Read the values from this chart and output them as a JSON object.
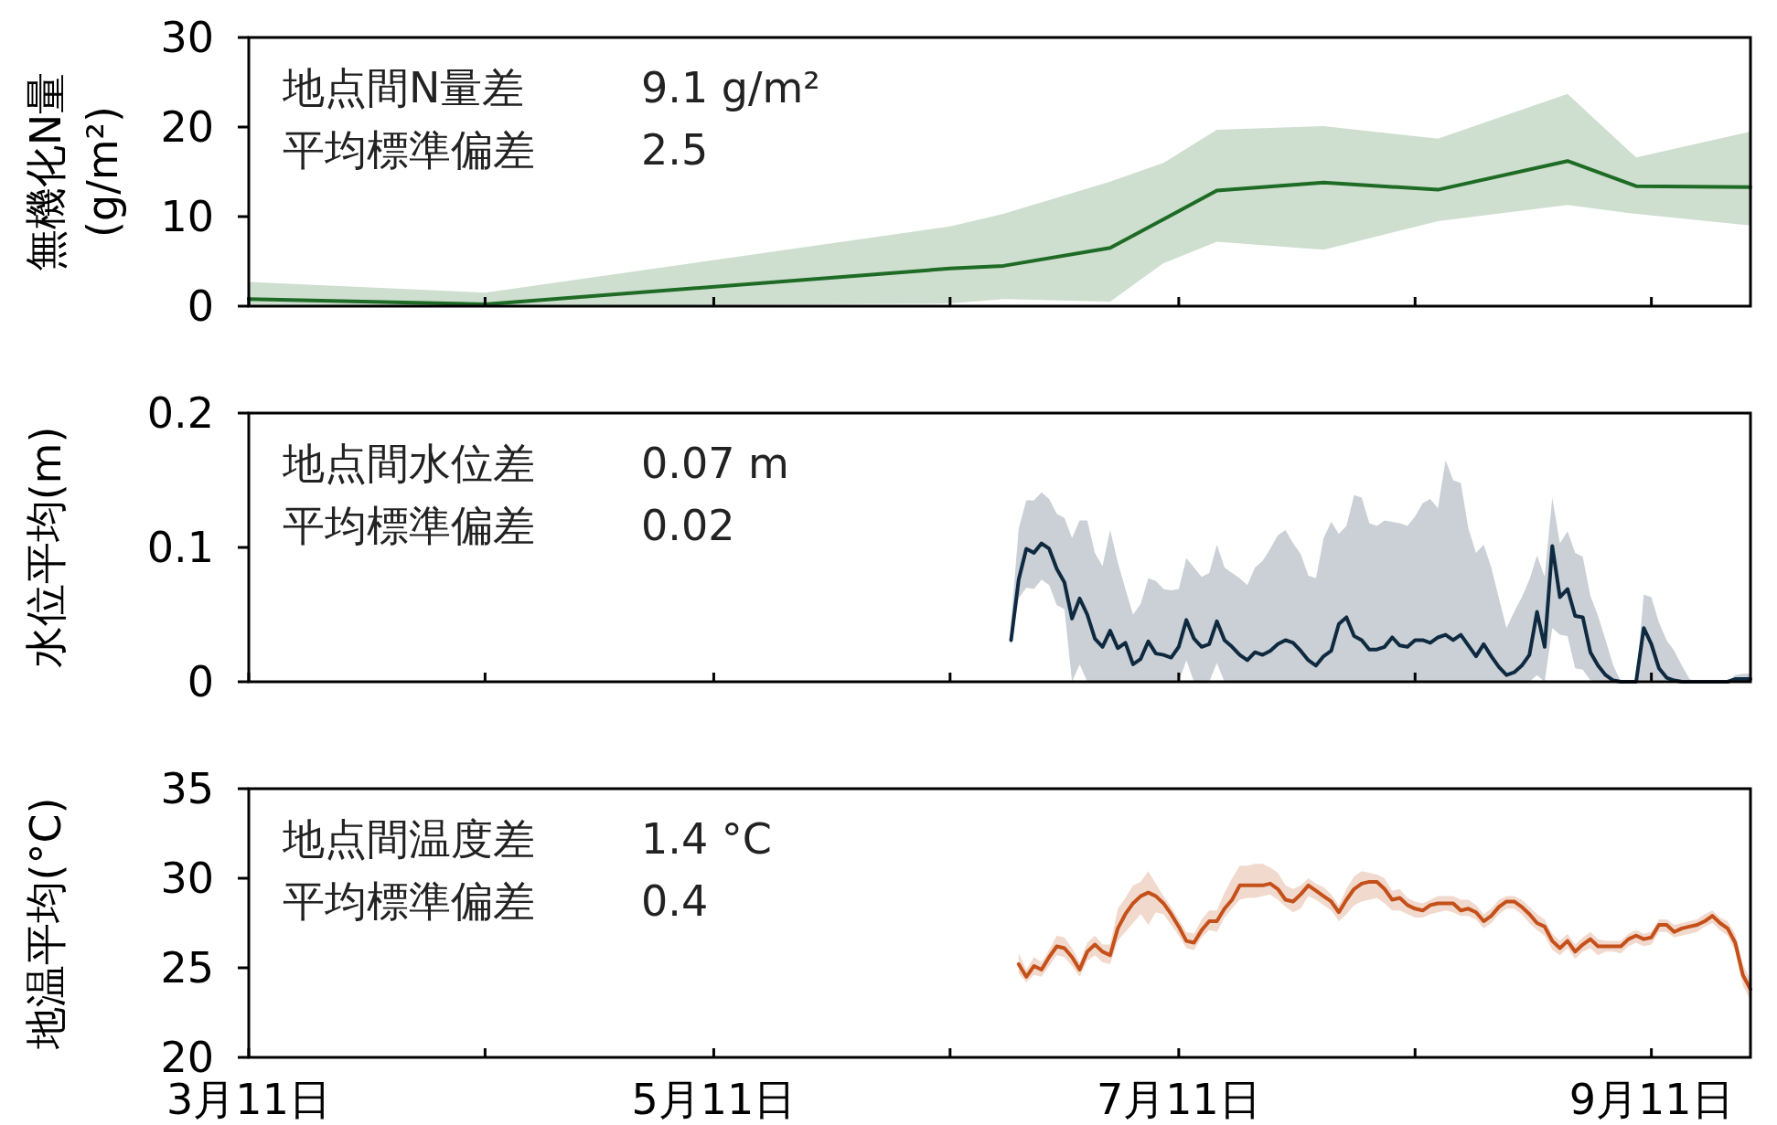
{
  "chart_data": [
    {
      "type": "line",
      "ylabel": "無機化N量 (g/m²)",
      "xlim": [
        "--03-11",
        "--09-24"
      ],
      "ylim": [
        0,
        30
      ],
      "yticks": [
        0,
        10,
        20,
        30
      ],
      "tick_labels": "y",
      "xticks": [
        {
          "value": "--03-11",
          "label": null
        },
        {
          "value": "--04-11",
          "label": null
        },
        {
          "value": "--05-11",
          "label": null
        },
        {
          "value": "--06-11",
          "label": null
        },
        {
          "value": "--07-11",
          "label": null
        },
        {
          "value": "--08-11",
          "label": null
        },
        {
          "value": "--09-11",
          "label": null
        }
      ],
      "annotations": [
        "地点間N量差 9.1 g/m²",
        "平均標準偏差 2.5"
      ],
      "series": [
        {
          "color": "#1e6b25",
          "x": [
            "--03-11",
            "--04-11",
            "--06-11",
            "--06-18",
            "--07-02",
            "--07-09",
            "--07-16",
            "--07-30",
            "--08-14",
            "--08-31",
            "--09-09",
            "--09-24"
          ],
          "values": [
            0.8,
            0.2,
            4.2,
            4.5,
            6.5,
            9.7,
            12.9,
            13.8,
            13.0,
            16.2,
            13.4,
            13.3
          ],
          "upper": [
            2.7,
            1.5,
            8.9,
            10.3,
            13.9,
            16.0,
            19.7,
            20.1,
            18.7,
            23.7,
            16.6,
            19.5
          ],
          "lower": [
            0,
            0,
            0.3,
            0.8,
            0.5,
            4.8,
            7.2,
            6.3,
            9.5,
            11.3,
            10.3,
            9.0
          ]
        }
      ]
    },
    {
      "type": "line",
      "ylabel": "水位平均(m)",
      "xlim": [
        "--03-11",
        "--09-24"
      ],
      "ylim": [
        0,
        0.2
      ],
      "yticks": [
        0,
        0.1,
        0.2
      ],
      "tick_labels": "y",
      "xticks": [
        {
          "value": "--03-11",
          "label": null
        },
        {
          "value": "--04-11",
          "label": null
        },
        {
          "value": "--05-11",
          "label": null
        },
        {
          "value": "--06-11",
          "label": null
        },
        {
          "value": "--07-11",
          "label": null
        },
        {
          "value": "--08-11",
          "label": null
        },
        {
          "value": "--09-11",
          "label": null
        }
      ],
      "annotations": [
        "地点間水位差 0.07 m",
        "平均標準偏差 0.02"
      ],
      "series": [
        {
          "color": "#0f2a40",
          "x": [
            "--06-19",
            "--06-20",
            "--06-21",
            "--06-22",
            "--06-23",
            "--06-24",
            "--06-25",
            "--06-26",
            "--06-27",
            "--06-28",
            "--06-29",
            "--06-30",
            "--07-01",
            "--07-02",
            "--07-03",
            "--07-04",
            "--07-05",
            "--07-06",
            "--07-07",
            "--07-08",
            "--07-09",
            "--07-10",
            "--07-11",
            "--07-12",
            "--07-13",
            "--07-14",
            "--07-15",
            "--07-16",
            "--07-17",
            "--07-18",
            "--07-19",
            "--07-20",
            "--07-21",
            "--07-22",
            "--07-23",
            "--07-24",
            "--07-25",
            "--07-26",
            "--07-27",
            "--07-28",
            "--07-29",
            "--07-30",
            "--07-31",
            "--08-01",
            "--08-02",
            "--08-03",
            "--08-04",
            "--08-05",
            "--08-06",
            "--08-07",
            "--08-08",
            "--08-09",
            "--08-10",
            "--08-11",
            "--08-12",
            "--08-13",
            "--08-14",
            "--08-15",
            "--08-16",
            "--08-17",
            "--08-18",
            "--08-19",
            "--08-20",
            "--08-21",
            "--08-22",
            "--08-23",
            "--08-24",
            "--08-25",
            "--08-26",
            "--08-27",
            "--08-28",
            "--08-29",
            "--08-30",
            "--08-31",
            "--09-01",
            "--09-02",
            "--09-03",
            "--09-04",
            "--09-05",
            "--09-06",
            "--09-07",
            "--09-08",
            "--09-09",
            "--09-10",
            "--09-11",
            "--09-12",
            "--09-13",
            "--09-14",
            "--09-15",
            "--09-16",
            "--09-17",
            "--09-18",
            "--09-19",
            "--09-20",
            "--09-21",
            "--09-22",
            "--09-23",
            "--09-24"
          ],
          "values": [
            0.031,
            0.076,
            0.099,
            0.096,
            0.103,
            0.099,
            0.084,
            0.074,
            0.047,
            0.062,
            0.05,
            0.032,
            0.026,
            0.038,
            0.025,
            0.029,
            0.013,
            0.017,
            0.03,
            0.021,
            0.02,
            0.018,
            0.026,
            0.046,
            0.032,
            0.026,
            0.028,
            0.045,
            0.031,
            0.026,
            0.02,
            0.016,
            0.022,
            0.02,
            0.023,
            0.028,
            0.031,
            0.029,
            0.023,
            0.016,
            0.012,
            0.019,
            0.023,
            0.043,
            0.048,
            0.034,
            0.031,
            0.024,
            0.024,
            0.026,
            0.033,
            0.027,
            0.026,
            0.031,
            0.031,
            0.029,
            0.033,
            0.035,
            0.031,
            0.035,
            0.027,
            0.019,
            0.028,
            0.019,
            0.011,
            0.005,
            0.007,
            0.012,
            0.02,
            0.052,
            0.026,
            0.101,
            0.063,
            0.069,
            0.049,
            0.048,
            0.022,
            0.012,
            0.005,
            0.001,
            0,
            0,
            0,
            0.04,
            0.028,
            0.01,
            0.003,
            0.001,
            0,
            0,
            0,
            0,
            0,
            0,
            0,
            0.002,
            0.002,
            0.002
          ],
          "upper": [
            0.044,
            0.114,
            0.135,
            0.135,
            0.141,
            0.136,
            0.125,
            0.122,
            0.107,
            0.12,
            0.12,
            0.096,
            0.086,
            0.113,
            0.089,
            0.069,
            0.05,
            0.058,
            0.077,
            0.075,
            0.069,
            0.068,
            0.069,
            0.092,
            0.085,
            0.078,
            0.081,
            0.102,
            0.085,
            0.081,
            0.077,
            0.072,
            0.085,
            0.09,
            0.099,
            0.109,
            0.113,
            0.103,
            0.095,
            0.079,
            0.077,
            0.107,
            0.119,
            0.11,
            0.116,
            0.139,
            0.137,
            0.118,
            0.116,
            0.12,
            0.119,
            0.118,
            0.116,
            0.123,
            0.133,
            0.136,
            0.129,
            0.165,
            0.15,
            0.148,
            0.114,
            0.096,
            0.102,
            0.085,
            0.062,
            0.04,
            0.052,
            0.063,
            0.076,
            0.094,
            0.078,
            0.137,
            0.103,
            0.112,
            0.096,
            0.093,
            0.064,
            0.049,
            0.031,
            0.012,
            0,
            0,
            0,
            0.065,
            0.063,
            0.044,
            0.031,
            0.023,
            0.012,
            0.002,
            0,
            0,
            0,
            0,
            0,
            0.005,
            0.006,
            0.006
          ],
          "lower": [
            0.027,
            0.062,
            0.07,
            0.069,
            0.076,
            0.072,
            0.057,
            0.054,
            0,
            0.013,
            0,
            0,
            0,
            0,
            0,
            0,
            0,
            0,
            0,
            0,
            0,
            0,
            0,
            0.016,
            0,
            0,
            0,
            0.014,
            0,
            0,
            0,
            0,
            0,
            0,
            0,
            0,
            0,
            0,
            0,
            0,
            0,
            0,
            0,
            0,
            0,
            0,
            0,
            0,
            0,
            0,
            0,
            0,
            0,
            0,
            0,
            0,
            0,
            0,
            0,
            0,
            0,
            0,
            0,
            0,
            0,
            0,
            0,
            0,
            0,
            0.005,
            0,
            0.04,
            0.035,
            0.034,
            0.01,
            0.009,
            0.001,
            0,
            0,
            0,
            0,
            0,
            0,
            0,
            0,
            0,
            0,
            0,
            0,
            0,
            0,
            0,
            0,
            0,
            0,
            0,
            0,
            0
          ]
        }
      ]
    },
    {
      "type": "line",
      "ylabel": "地温平均(°C)",
      "xlim": [
        "--03-11",
        "--09-24"
      ],
      "ylim": [
        20,
        35
      ],
      "yticks": [
        20,
        25,
        30,
        35
      ],
      "xticks": [
        {
          "value": "--03-11",
          "label": "3月11日"
        },
        {
          "value": "--04-11",
          "label": null
        },
        {
          "value": "--05-11",
          "label": "5月11日"
        },
        {
          "value": "--06-11",
          "label": null
        },
        {
          "value": "--07-11",
          "label": "7月11日"
        },
        {
          "value": "--08-11",
          "label": null
        },
        {
          "value": "--09-11",
          "label": "9月11日"
        }
      ],
      "annotations": [
        "地点間温度差 1.4 °C",
        "平均標準偏差 0.4"
      ],
      "series": [
        {
          "color": "#c4501a",
          "x": [
            "--06-20",
            "--06-21",
            "--06-22",
            "--06-23",
            "--06-24",
            "--06-25",
            "--06-26",
            "--06-27",
            "--06-28",
            "--06-29",
            "--06-30",
            "--07-01",
            "--07-02",
            "--07-03",
            "--07-04",
            "--07-05",
            "--07-06",
            "--07-07",
            "--07-08",
            "--07-09",
            "--07-10",
            "--07-11",
            "--07-12",
            "--07-13",
            "--07-14",
            "--07-15",
            "--07-16",
            "--07-17",
            "--07-18",
            "--07-19",
            "--07-20",
            "--07-21",
            "--07-22",
            "--07-23",
            "--07-24",
            "--07-25",
            "--07-26",
            "--07-27",
            "--07-28",
            "--07-29",
            "--07-30",
            "--07-31",
            "--08-01",
            "--08-02",
            "--08-03",
            "--08-04",
            "--08-05",
            "--08-06",
            "--08-07",
            "--08-08",
            "--08-09",
            "--08-10",
            "--08-11",
            "--08-12",
            "--08-13",
            "--08-14",
            "--08-15",
            "--08-16",
            "--08-17",
            "--08-18",
            "--08-19",
            "--08-20",
            "--08-21",
            "--08-22",
            "--08-23",
            "--08-24",
            "--08-25",
            "--08-26",
            "--08-27",
            "--08-28",
            "--08-29",
            "--08-30",
            "--08-31",
            "--09-01",
            "--09-02",
            "--09-03",
            "--09-04",
            "--09-05",
            "--09-06",
            "--09-07",
            "--09-08",
            "--09-09",
            "--09-10",
            "--09-11",
            "--09-12",
            "--09-13",
            "--09-14",
            "--09-15",
            "--09-16",
            "--09-17",
            "--09-18",
            "--09-19",
            "--09-20",
            "--09-21",
            "--09-22",
            "--09-23",
            "--09-24"
          ],
          "values": [
            25.2,
            24.5,
            25.1,
            24.9,
            25.6,
            26.2,
            26.1,
            25.6,
            24.9,
            25.9,
            26.3,
            25.9,
            25.7,
            27.2,
            28.0,
            28.6,
            29.0,
            29.2,
            29.0,
            28.6,
            28.0,
            27.3,
            26.5,
            26.4,
            27.1,
            27.6,
            27.6,
            28.3,
            28.8,
            29.6,
            29.6,
            29.6,
            29.6,
            29.7,
            29.4,
            28.8,
            28.7,
            29.1,
            29.6,
            29.3,
            29.0,
            28.7,
            28.1,
            28.8,
            29.4,
            29.7,
            29.8,
            29.8,
            29.4,
            28.8,
            28.9,
            28.5,
            28.3,
            28.2,
            28.5,
            28.6,
            28.6,
            28.6,
            28.2,
            28.3,
            28.1,
            27.6,
            27.9,
            28.4,
            28.7,
            28.7,
            28.4,
            28.0,
            27.5,
            27.3,
            26.5,
            26.1,
            26.5,
            25.9,
            26.3,
            26.6,
            26.2,
            26.2,
            26.2,
            26.2,
            26.6,
            26.8,
            26.6,
            26.7,
            27.4,
            27.4,
            27.0,
            27.2,
            27.3,
            27.4,
            27.6,
            27.9,
            27.5,
            27.2,
            26.4,
            24.6,
            23.8
          ],
          "upper": [
            25.8,
            24.9,
            25.6,
            25.3,
            26.0,
            26.8,
            26.7,
            26.1,
            25.3,
            26.4,
            26.8,
            26.3,
            26.3,
            28.3,
            28.9,
            29.6,
            29.8,
            30.4,
            29.7,
            29.0,
            28.4,
            27.7,
            27.0,
            26.9,
            27.7,
            28.2,
            28.2,
            29.2,
            30.0,
            30.7,
            30.7,
            30.8,
            30.8,
            30.6,
            30.3,
            29.6,
            29.4,
            29.6,
            30.0,
            29.7,
            29.5,
            29.1,
            28.5,
            29.4,
            30.1,
            30.4,
            30.3,
            30.2,
            30.0,
            29.3,
            29.4,
            28.9,
            28.7,
            28.6,
            28.8,
            29.0,
            29.0,
            29.0,
            28.8,
            28.8,
            28.5,
            28.0,
            28.3,
            28.8,
            29.0,
            29.0,
            28.8,
            28.4,
            28.0,
            27.7,
            26.9,
            26.5,
            26.9,
            26.3,
            26.7,
            27.0,
            26.6,
            26.5,
            26.5,
            26.5,
            26.9,
            27.1,
            26.9,
            27.0,
            27.7,
            27.7,
            27.4,
            27.5,
            27.6,
            27.7,
            28.0,
            28.2,
            27.8,
            27.6,
            26.9,
            25.2,
            24.3
          ],
          "lower": [
            24.7,
            24.2,
            24.6,
            24.5,
            25.1,
            25.7,
            25.6,
            25.1,
            24.5,
            25.4,
            25.7,
            25.3,
            25.2,
            26.5,
            27.0,
            27.5,
            28.0,
            27.4,
            28.1,
            28.0,
            27.4,
            26.8,
            26.1,
            26.0,
            26.7,
            27.1,
            27.0,
            27.8,
            28.3,
            28.8,
            28.9,
            28.9,
            29.0,
            29.1,
            28.8,
            28.4,
            28.1,
            28.3,
            29.0,
            28.8,
            28.5,
            28.2,
            27.6,
            28.0,
            28.5,
            28.7,
            28.8,
            28.9,
            28.6,
            28.2,
            28.2,
            28.0,
            27.8,
            27.8,
            28.0,
            28.1,
            28.2,
            28.1,
            27.9,
            27.9,
            27.7,
            27.2,
            27.5,
            28.0,
            28.3,
            28.3,
            28.0,
            27.5,
            27.1,
            26.8,
            26.0,
            25.7,
            26.1,
            25.5,
            25.9,
            26.1,
            25.7,
            25.9,
            25.9,
            25.8,
            26.2,
            26.4,
            26.2,
            26.3,
            27.0,
            27.0,
            26.7,
            26.8,
            26.9,
            27.0,
            27.3,
            27.5,
            27.1,
            26.8,
            25.9,
            24.0,
            23.2
          ]
        }
      ]
    }
  ]
}
